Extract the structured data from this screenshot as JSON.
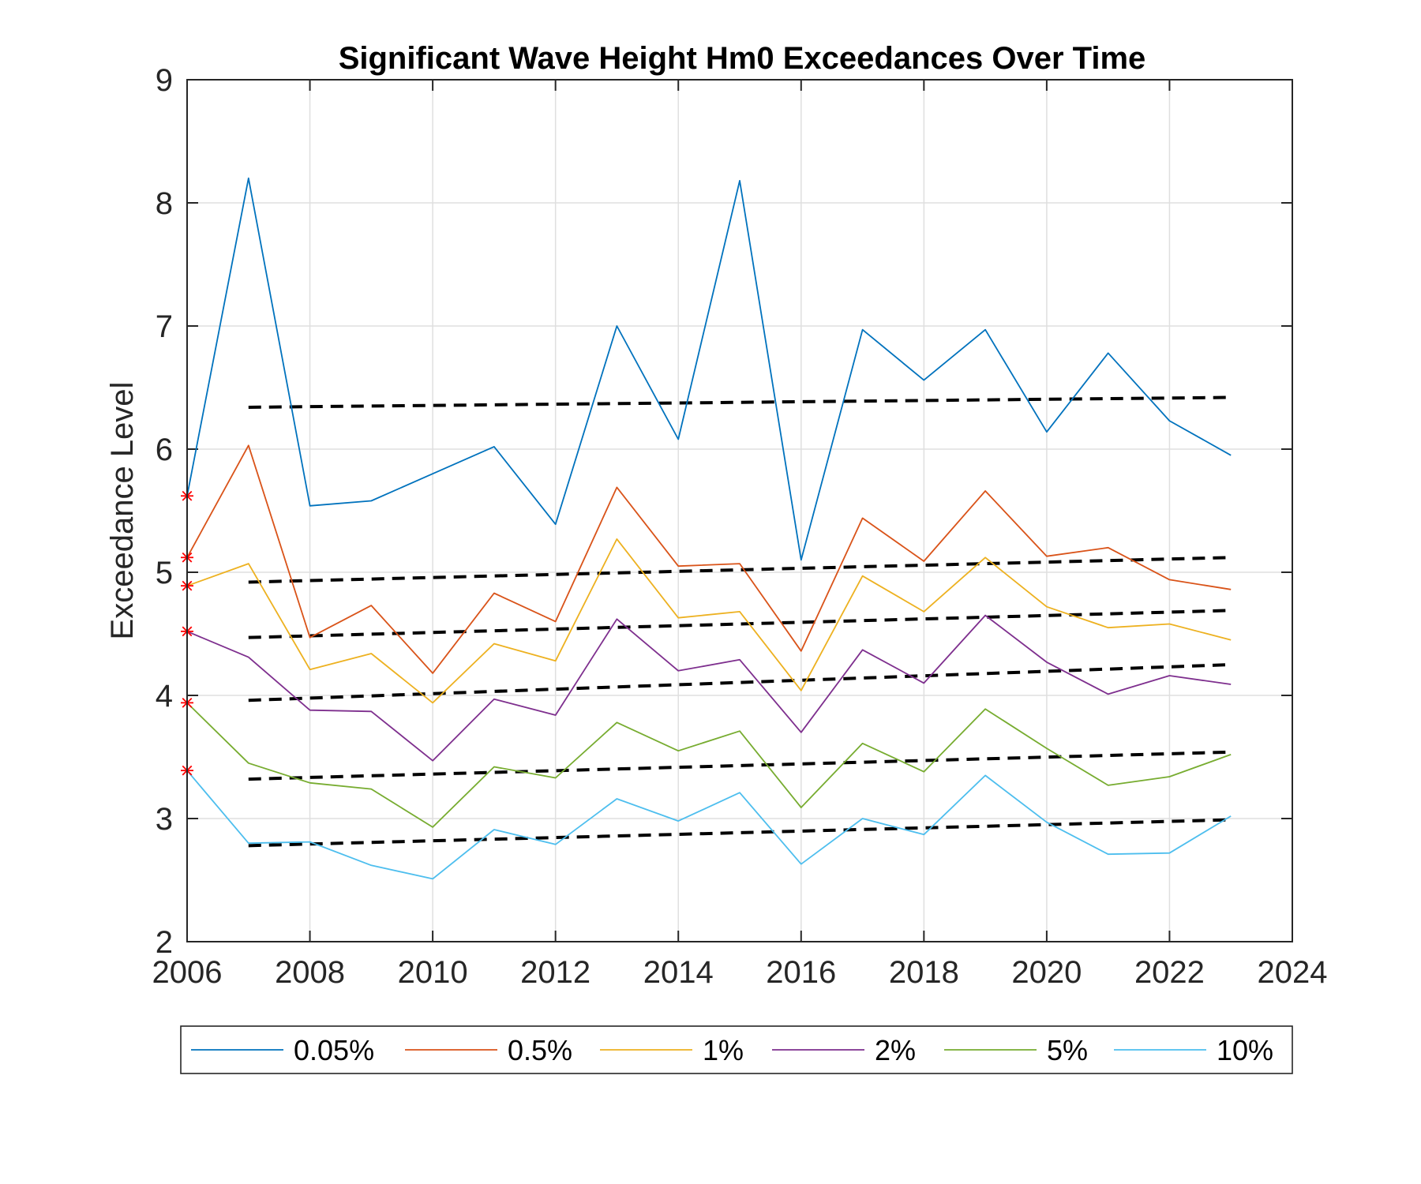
{
  "chart_data": {
    "type": "line",
    "title": "Significant Wave Height Hm0 Exceedances Over Time",
    "xlabel": "",
    "ylabel": "Exceedance Level",
    "xlim": [
      2006,
      2024
    ],
    "ylim": [
      2,
      9
    ],
    "xticks": [
      "2006",
      "2008",
      "2010",
      "2012",
      "2014",
      "2016",
      "2018",
      "2020",
      "2022",
      "2024"
    ],
    "yticks": [
      "2",
      "3",
      "4",
      "5",
      "6",
      "7",
      "8",
      "9"
    ],
    "grid": true,
    "legend_position": "bottom-outside",
    "x": [
      2006,
      2007,
      2008,
      2009,
      2010,
      2011,
      2012,
      2013,
      2014,
      2015,
      2016,
      2017,
      2018,
      2019,
      2020,
      2021,
      2022,
      2023
    ],
    "series": [
      {
        "name": "0.05%",
        "color": "#0072BD",
        "values": [
          5.62,
          8.2,
          5.54,
          5.58,
          5.8,
          6.02,
          5.39,
          7.0,
          6.08,
          8.18,
          5.1,
          6.97,
          6.56,
          6.97,
          6.14,
          6.78,
          6.23,
          5.95
        ]
      },
      {
        "name": "0.5%",
        "color": "#D95319",
        "values": [
          5.12,
          6.03,
          4.47,
          4.73,
          4.18,
          4.83,
          4.6,
          5.69,
          5.05,
          5.07,
          4.36,
          5.44,
          5.09,
          5.66,
          5.13,
          5.2,
          4.94,
          4.86
        ]
      },
      {
        "name": "1%",
        "color": "#EDB120",
        "values": [
          4.89,
          5.07,
          4.21,
          4.34,
          3.94,
          4.42,
          4.28,
          5.27,
          4.63,
          4.68,
          4.04,
          4.97,
          4.68,
          5.12,
          4.72,
          4.55,
          4.58,
          4.45
        ]
      },
      {
        "name": "2%",
        "color": "#7E2F8E",
        "values": [
          4.52,
          4.31,
          3.88,
          3.87,
          3.47,
          3.97,
          3.84,
          4.62,
          4.2,
          4.29,
          3.7,
          4.37,
          4.1,
          4.65,
          4.27,
          4.01,
          4.16,
          4.09
        ]
      },
      {
        "name": "5%",
        "color": "#77AC30",
        "values": [
          3.94,
          3.45,
          3.29,
          3.24,
          2.93,
          3.42,
          3.33,
          3.78,
          3.55,
          3.71,
          3.09,
          3.61,
          3.38,
          3.89,
          3.57,
          3.27,
          3.34,
          3.52
        ]
      },
      {
        "name": "10%",
        "color": "#4DBEEE",
        "values": [
          3.39,
          2.8,
          2.81,
          2.62,
          2.51,
          2.91,
          2.79,
          3.16,
          2.98,
          3.21,
          2.63,
          3.0,
          2.87,
          3.35,
          2.97,
          2.71,
          2.72,
          3.02
        ]
      }
    ],
    "trendlines": [
      {
        "x": [
          2007,
          2023
        ],
        "values": [
          6.34,
          6.42
        ]
      },
      {
        "x": [
          2007,
          2023
        ],
        "values": [
          4.92,
          5.12
        ]
      },
      {
        "x": [
          2007,
          2023
        ],
        "values": [
          4.47,
          4.69
        ]
      },
      {
        "x": [
          2007,
          2023
        ],
        "values": [
          3.96,
          4.25
        ]
      },
      {
        "x": [
          2007,
          2023
        ],
        "values": [
          3.32,
          3.54
        ]
      },
      {
        "x": [
          2007,
          2023
        ],
        "values": [
          2.78,
          2.99
        ]
      }
    ],
    "trendline_color": "#000000",
    "markers": {
      "x": 2006,
      "values": [
        5.62,
        5.12,
        4.89,
        4.52,
        3.94,
        3.39
      ],
      "color": "#FF0000",
      "symbol": "*"
    }
  }
}
